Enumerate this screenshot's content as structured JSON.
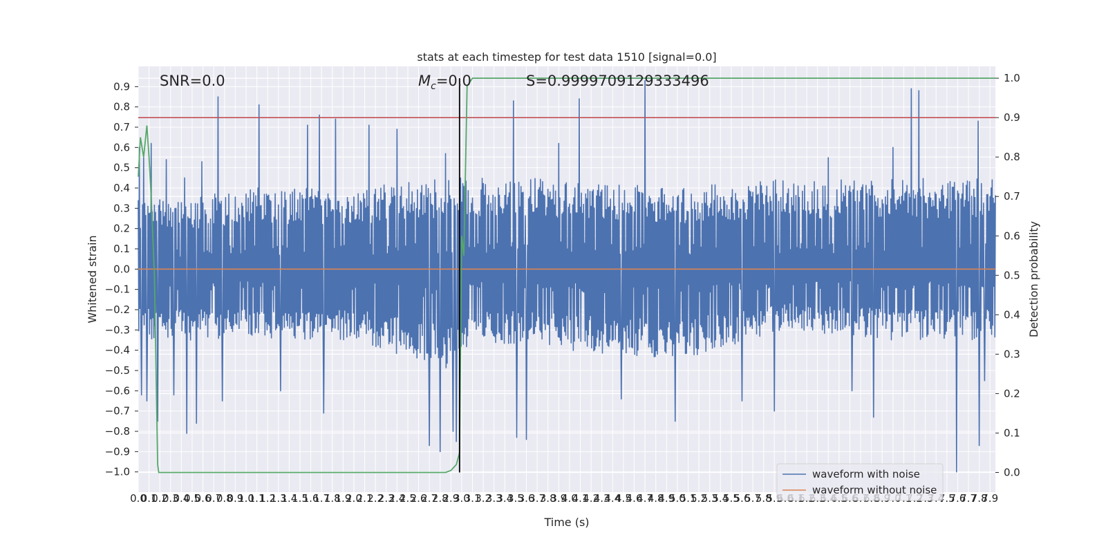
{
  "chart_data": {
    "type": "line",
    "title": "stats at each timestep for test data 1510 [signal=0.0]",
    "xlabel": "Time (s)",
    "ylabel": "Whitened strain",
    "y2label": "Detection probability",
    "xlim": [
      0.0,
      7.95
    ],
    "ylim": [
      -1.1,
      1.0
    ],
    "y2lim": [
      -0.05,
      1.03
    ],
    "x_ticks": [
      "0.0",
      "0.1",
      "0.2",
      "0.3",
      "0.4",
      "0.5",
      "0.6",
      "0.7",
      "0.8",
      "0.9",
      "1.0",
      "1.1",
      "1.2",
      "1.3",
      "1.4",
      "1.5",
      "1.6",
      "1.7",
      "1.8",
      "1.9",
      "2.0",
      "2.1",
      "2.2",
      "2.3",
      "2.4",
      "2.5",
      "2.6",
      "2.7",
      "2.8",
      "2.9",
      "3.0",
      "3.1",
      "3.2",
      "3.3",
      "3.4",
      "3.5",
      "3.6",
      "3.7",
      "3.8",
      "3.9",
      "4.0",
      "4.1",
      "4.2",
      "4.3",
      "4.4",
      "4.5",
      "4.6",
      "4.7",
      "4.8",
      "4.9",
      "5.0",
      "5.1",
      "5.2",
      "5.3",
      "5.4",
      "5.5",
      "5.6",
      "5.7",
      "5.8",
      "5.9",
      "6.0",
      "6.1",
      "6.2",
      "6.3",
      "6.4",
      "6.5",
      "6.6",
      "6.7",
      "6.8",
      "6.9",
      "7.0",
      "7.1",
      "7.2",
      "7.3",
      "7.4",
      "7.5",
      "7.6",
      "7.7",
      "7.8",
      "7.9"
    ],
    "y_ticks": [
      "0.9",
      "0.8",
      "0.7",
      "0.6",
      "0.5",
      "0.4",
      "0.3",
      "0.2",
      "0.1",
      "0.0",
      "−0.1",
      "−0.2",
      "−0.3",
      "−0.4",
      "−0.5",
      "−0.6",
      "−0.7",
      "−0.8",
      "−0.9",
      "−1.0"
    ],
    "y2_ticks": [
      "1.0",
      "0.9",
      "0.8",
      "0.7",
      "0.6",
      "0.5",
      "0.4",
      "0.3",
      "0.2",
      "0.1",
      "0.0"
    ],
    "annotations": {
      "snr": "SNR=0.0",
      "mc_symbol": "M",
      "mc_sub": "c",
      "mc_value": "=0.0",
      "s": "S=0.9999709129333496"
    },
    "threshold_y2": 0.9,
    "marker_time": 2.98,
    "series": [
      {
        "name": "waveform with noise",
        "color": "#4c72b0",
        "band": [
          [
            0.0,
            -0.35,
            0.35
          ],
          [
            0.5,
            -0.35,
            0.35
          ],
          [
            1.0,
            -0.35,
            0.4
          ],
          [
            2.0,
            -0.35,
            0.4
          ],
          [
            2.9,
            -0.5,
            0.45
          ],
          [
            3.1,
            -0.35,
            0.45
          ],
          [
            4.0,
            -0.4,
            0.45
          ],
          [
            5.0,
            -0.45,
            0.4
          ],
          [
            6.0,
            -0.3,
            0.45
          ],
          [
            7.0,
            -0.35,
            0.45
          ],
          [
            7.95,
            -0.35,
            0.45
          ]
        ],
        "spikes": [
          [
            0.01,
            0.6
          ],
          [
            0.03,
            -0.62
          ],
          [
            0.05,
            0.55
          ],
          [
            0.08,
            -0.65
          ],
          [
            0.12,
            0.62
          ],
          [
            0.18,
            -0.75
          ],
          [
            0.26,
            0.54
          ],
          [
            0.33,
            -0.62
          ],
          [
            0.43,
            0.45
          ],
          [
            0.45,
            -0.81
          ],
          [
            0.59,
            0.53
          ],
          [
            0.54,
            -0.76
          ],
          [
            0.74,
            0.85
          ],
          [
            0.78,
            -0.65
          ],
          [
            1.12,
            0.81
          ],
          [
            1.32,
            -0.6
          ],
          [
            1.57,
            0.71
          ],
          [
            1.68,
            0.76
          ],
          [
            1.83,
            0.74
          ],
          [
            1.72,
            -0.71
          ],
          [
            2.14,
            0.71
          ],
          [
            2.4,
            0.69
          ],
          [
            2.7,
            -0.87
          ],
          [
            2.8,
            -0.9
          ],
          [
            2.85,
            0.57
          ],
          [
            2.92,
            -0.8
          ],
          [
            2.95,
            -0.85
          ],
          [
            3.48,
            0.83
          ],
          [
            3.51,
            -0.83
          ],
          [
            3.6,
            -0.84
          ],
          [
            3.9,
            0.62
          ],
          [
            4.09,
            0.84
          ],
          [
            4.48,
            -0.64
          ],
          [
            4.7,
            0.93
          ],
          [
            4.98,
            -0.75
          ],
          [
            5.6,
            -0.65
          ],
          [
            5.9,
            -0.7
          ],
          [
            6.4,
            0.55
          ],
          [
            6.62,
            -0.6
          ],
          [
            6.82,
            -0.73
          ],
          [
            7.0,
            0.6
          ],
          [
            7.17,
            0.89
          ],
          [
            7.24,
            0.88
          ],
          [
            7.59,
            -1.0
          ],
          [
            7.79,
            0.73
          ],
          [
            7.8,
            -0.87
          ],
          [
            7.85,
            -0.55
          ]
        ]
      },
      {
        "name": "waveform without noise",
        "color": "#dd8452",
        "x": [
          0.0,
          7.95
        ],
        "y": [
          0.0,
          0.0
        ]
      },
      {
        "name": "detection probability",
        "color": "#55a868",
        "axis": "right",
        "x": [
          0.0,
          0.02,
          0.05,
          0.08,
          0.1,
          0.12,
          0.15,
          0.18,
          0.19,
          2.85,
          2.9,
          2.95,
          2.98,
          3.0,
          3.02,
          3.05,
          3.1,
          3.15,
          7.95
        ],
        "y": [
          0.75,
          0.85,
          0.8,
          0.88,
          0.8,
          0.7,
          0.5,
          0.02,
          0.0,
          0.0,
          0.005,
          0.02,
          0.05,
          0.6,
          0.55,
          0.98,
          1.0,
          1.0,
          1.0
        ]
      }
    ],
    "legend_position": "lower right",
    "grid": true,
    "colors": {
      "plot_bg": "#eaeaf2",
      "grid": "#ffffff",
      "threshold": "#c44e52",
      "marker": "#000000"
    }
  }
}
